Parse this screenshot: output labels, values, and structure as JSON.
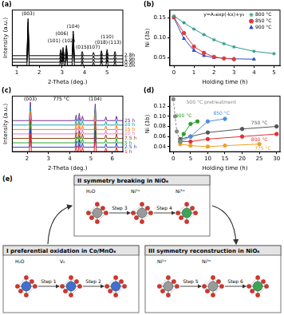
{
  "chart_data": [
    {
      "title": "(a)",
      "type": "line",
      "xlabel": "2-Theta (deg.)",
      "ylabel": "Intensity (a.u.)",
      "x": [
        0.8,
        1.45,
        1.5,
        1.55,
        2.9,
        2.95,
        3.0,
        3.05,
        3.1,
        3.15,
        3.2,
        3.25,
        3.45,
        3.5,
        3.55,
        3.85,
        3.9,
        3.95,
        4.35,
        4.4,
        4.45,
        4.7,
        4.75,
        4.8,
        4.95,
        5.0,
        5.05,
        5.3,
        5.35,
        5.4,
        5.7
      ],
      "series": [
        {
          "name": "0.0h",
          "color": "#000000",
          "values": [
            0,
            0,
            0.9,
            0,
            0,
            0.15,
            0,
            0.2,
            0,
            0,
            0.25,
            0,
            0,
            0.6,
            0,
            0,
            0.1,
            0,
            0,
            0.08,
            0,
            0,
            0.12,
            0,
            0,
            0.15,
            0,
            0,
            0.1,
            0,
            0
          ]
        },
        {
          "name": "0.9h",
          "color": "#000000",
          "values": [
            0.08,
            0.08,
            0.98,
            0.08,
            0.08,
            0.23,
            0.08,
            0.28,
            0.08,
            0.08,
            0.33,
            0.08,
            0.08,
            0.68,
            0.08,
            0.08,
            0.18,
            0.08,
            0.08,
            0.16,
            0.08,
            0.08,
            0.2,
            0.08,
            0.08,
            0.23,
            0.08,
            0.08,
            0.18,
            0.08,
            0.08
          ]
        },
        {
          "name": "1.9h",
          "color": "#000000",
          "values": [
            0.16,
            0.16,
            1.06,
            0.16,
            0.16,
            0.31,
            0.16,
            0.36,
            0.16,
            0.16,
            0.41,
            0.16,
            0.16,
            0.76,
            0.16,
            0.16,
            0.26,
            0.16,
            0.16,
            0.24,
            0.16,
            0.16,
            0.28,
            0.16,
            0.16,
            0.31,
            0.16,
            0.16,
            0.26,
            0.16,
            0.16
          ]
        },
        {
          "name": "2.8h",
          "color": "#000000",
          "values": [
            0.24,
            0.24,
            1.14,
            0.24,
            0.24,
            0.39,
            0.24,
            0.44,
            0.24,
            0.24,
            0.49,
            0.24,
            0.24,
            0.84,
            0.24,
            0.24,
            0.34,
            0.24,
            0.24,
            0.32,
            0.24,
            0.24,
            0.36,
            0.24,
            0.24,
            0.39,
            0.24,
            0.24,
            0.34,
            0.24,
            0.24
          ]
        }
      ],
      "xlim": [
        0.8,
        5.7
      ],
      "xticks": [
        1,
        2,
        3,
        4,
        5
      ],
      "ylim": [
        0,
        1.35
      ],
      "tick_labels": "x",
      "annotations": [
        {
          "text": "(003)",
          "x": 1.5,
          "y": 1.25
        },
        {
          "text": "(101)",
          "x": 2.65,
          "y": 0.6
        },
        {
          "text": "(006)",
          "x": 3.0,
          "y": 0.78
        },
        {
          "text": "(102)",
          "x": 3.3,
          "y": 0.6
        },
        {
          "text": "(104)",
          "x": 3.5,
          "y": 0.95
        },
        {
          "text": "(015)",
          "x": 3.9,
          "y": 0.45
        },
        {
          "text": "(107)",
          "x": 4.4,
          "y": 0.45
        },
        {
          "text": "(018)",
          "x": 4.75,
          "y": 0.56
        },
        {
          "text": "(110)",
          "x": 5.0,
          "y": 0.69
        },
        {
          "text": "(113)",
          "x": 5.35,
          "y": 0.56
        }
      ]
    },
    {
      "title": "(b)",
      "type": "scatter",
      "xlabel": "Holding time (h)",
      "ylabel": "Ni (3b)",
      "series": [
        {
          "name": "800 °C",
          "color": "#2f9a8a",
          "marker": "star",
          "line_style": "solid",
          "x": [
            0,
            0.5,
            1,
            1.5,
            2,
            2.5,
            3,
            4,
            5
          ],
          "values": [
            0.155,
            0.138,
            0.122,
            0.108,
            0.095,
            0.085,
            0.077,
            0.066,
            0.06
          ]
        },
        {
          "name": "850 °C",
          "color": "#e23b3b",
          "marker": "circle",
          "line_style": "solid",
          "x": [
            0,
            0.5,
            1,
            1.5,
            2,
            2.5,
            3
          ],
          "values": [
            0.152,
            0.112,
            0.078,
            0.062,
            0.052,
            0.048,
            0.046
          ]
        },
        {
          "name": "900 °C",
          "color": "#2d4fbf",
          "marker": "triangle",
          "line_style": "solid",
          "x": [
            0,
            0.5,
            1,
            1.5,
            2,
            3,
            4
          ],
          "values": [
            0.15,
            0.098,
            0.068,
            0.055,
            0.05,
            0.047,
            0.046
          ]
        }
      ],
      "xlim": [
        -0.2,
        5.3
      ],
      "xticks": [
        0,
        1,
        2,
        3,
        4,
        5
      ],
      "ylim": [
        0.03,
        0.17
      ],
      "yticks": [
        0.05,
        {
          "value": 0.1,
          "label": "0.10"
        },
        0.15
      ],
      "legend": "upper right",
      "annotations": [
        {
          "text": "y=A₁exp(-kx)+y₀",
          "x": 2.5,
          "y": 0.158
        }
      ]
    },
    {
      "title": "(c)",
      "type": "line",
      "xlabel": "2-Theta (deg.)",
      "ylabel": "Intensity (a.u.)",
      "x": [
        1.3,
        2.1,
        2.15,
        2.2,
        4.25,
        4.3,
        4.35,
        4.4,
        4.45,
        4.5,
        4.55,
        4.6,
        4.65,
        5.15,
        5.2,
        5.25,
        5.65,
        5.7,
        5.75,
        6.15,
        6.2,
        6.25,
        6.5
      ],
      "series": [
        {
          "name": "1 h",
          "color": "#e8202a",
          "values": [
            0,
            0,
            0.5,
            0,
            0,
            0.15,
            0,
            0,
            0.2,
            0,
            0,
            0.12,
            0,
            0,
            0.45,
            0,
            0,
            0.1,
            0,
            0,
            0.12,
            0,
            0
          ]
        },
        {
          "name": "2.5 h",
          "color": "#1f3fbf",
          "values": [
            0.12,
            0.12,
            0.62,
            0.12,
            0.12,
            0.27,
            0.12,
            0.12,
            0.32,
            0.12,
            0.12,
            0.24,
            0.12,
            0.12,
            0.57,
            0.12,
            0.12,
            0.22,
            0.12,
            0.12,
            0.24,
            0.12,
            0.12
          ]
        },
        {
          "name": "5 h",
          "color": "#2ca02c",
          "values": [
            0.24,
            0.24,
            0.74,
            0.24,
            0.24,
            0.39,
            0.24,
            0.24,
            0.44,
            0.24,
            0.24,
            0.36,
            0.24,
            0.24,
            0.69,
            0.24,
            0.24,
            0.34,
            0.24,
            0.24,
            0.36,
            0.24,
            0.24
          ]
        },
        {
          "name": "7.5 h",
          "color": "#8b4513",
          "values": [
            0.36,
            0.36,
            0.86,
            0.36,
            0.36,
            0.51,
            0.36,
            0.36,
            0.56,
            0.36,
            0.36,
            0.48,
            0.36,
            0.36,
            0.81,
            0.36,
            0.36,
            0.46,
            0.36,
            0.36,
            0.48,
            0.36,
            0.36
          ]
        },
        {
          "name": "10 h",
          "color": "#e377c2",
          "values": [
            0.48,
            0.48,
            0.98,
            0.48,
            0.48,
            0.63,
            0.48,
            0.48,
            0.68,
            0.48,
            0.48,
            0.6,
            0.48,
            0.48,
            0.93,
            0.48,
            0.48,
            0.58,
            0.48,
            0.48,
            0.6,
            0.48,
            0.48
          ]
        },
        {
          "name": "15 h",
          "color": "#ff7f0e",
          "values": [
            0.6,
            0.6,
            1.1,
            0.6,
            0.6,
            0.75,
            0.6,
            0.6,
            0.8,
            0.6,
            0.6,
            0.72,
            0.6,
            0.6,
            1.05,
            0.6,
            0.6,
            0.7,
            0.6,
            0.6,
            0.72,
            0.6,
            0.6
          ]
        },
        {
          "name": "20 h",
          "color": "#17a2b8",
          "values": [
            0.72,
            0.72,
            1.22,
            0.72,
            0.72,
            0.87,
            0.72,
            0.72,
            0.92,
            0.72,
            0.72,
            0.84,
            0.72,
            0.72,
            1.17,
            0.72,
            0.72,
            0.82,
            0.72,
            0.72,
            0.84,
            0.72,
            0.72
          ]
        },
        {
          "name": "25 h",
          "color": "#7b2d8e",
          "values": [
            0.84,
            0.84,
            1.34,
            0.84,
            0.84,
            0.99,
            0.84,
            0.84,
            1.04,
            0.84,
            0.84,
            0.96,
            0.84,
            0.84,
            1.29,
            0.84,
            0.84,
            0.94,
            0.84,
            0.84,
            0.96,
            0.84,
            0.84
          ]
        }
      ],
      "xlim": [
        1.3,
        6.5
      ],
      "xticks": [
        2,
        3,
        4,
        5,
        6
      ],
      "ylim": [
        0,
        1.5
      ],
      "tick_labels": "x",
      "annotations": [
        {
          "text": "(003)",
          "x": 2.15,
          "y": 1.42
        },
        {
          "text": "775 °C",
          "x": 3.6,
          "y": 1.42
        },
        {
          "text": "(104)",
          "x": 5.2,
          "y": 1.42
        }
      ]
    },
    {
      "title": "(d)",
      "type": "line",
      "xlabel": "Holding time (h)",
      "ylabel": "Ni (3b)",
      "series": [
        {
          "name": "500 °C pretreatment",
          "color": "#888888",
          "marker": "circle",
          "line_style": "dashed",
          "x": [
            0,
            0.5,
            1,
            2
          ],
          "values": [
            0.134,
            0.1,
            0.07,
            0.05
          ]
        },
        {
          "name": "900 °C",
          "color": "#2ca02c",
          "marker": "circle",
          "line_style": "solid",
          "x": [
            2,
            3,
            5,
            7
          ],
          "values": [
            0.05,
            0.065,
            0.085,
            0.09
          ]
        },
        {
          "name": "850 °C",
          "color": "#4a90d9",
          "marker": "circle",
          "line_style": "solid",
          "x": [
            2,
            5,
            10,
            15
          ],
          "values": [
            0.05,
            0.06,
            0.09,
            0.095
          ]
        },
        {
          "name": "800 °C",
          "color": "#e03030",
          "marker": "circle",
          "line_style": "solid",
          "x": [
            2,
            5,
            10,
            20,
            30
          ],
          "values": [
            0.05,
            0.05,
            0.055,
            0.06,
            0.065
          ]
        },
        {
          "name": "775 °C",
          "color": "#f0a020",
          "marker": "circle",
          "line_style": "solid",
          "x": [
            2,
            5,
            10,
            15,
            25
          ],
          "values": [
            0.045,
            0.042,
            0.04,
            0.042,
            0.045
          ]
        },
        {
          "name": "750 °C",
          "color": "#555555",
          "marker": "circle",
          "line_style": "solid",
          "x": [
            2,
            5,
            10,
            20,
            30
          ],
          "values": [
            0.055,
            0.06,
            0.068,
            0.075,
            0.08
          ]
        }
      ],
      "xlim": [
        -1,
        31
      ],
      "xticks": [
        0,
        5,
        10,
        15,
        20,
        25,
        30
      ],
      "ylim": [
        0.03,
        0.14
      ],
      "yticks": [
        0.04,
        0.06,
        0.08,
        {
          "value": 0.1,
          "label": "0.10"
        },
        0.12
      ],
      "annotations": [
        {
          "text": "500 °C pretreatment",
          "x": 11,
          "y": 0.128
        },
        {
          "text": "900 °C",
          "x": 3,
          "y": 0.1
        },
        {
          "text": "850 °C",
          "x": 14,
          "y": 0.106
        },
        {
          "text": "750 °C",
          "x": 25,
          "y": 0.087
        },
        {
          "text": "800 °C",
          "x": 25,
          "y": 0.054
        },
        {
          "text": "775 °C",
          "x": 26,
          "y": 0.036
        }
      ]
    }
  ],
  "diagram": {
    "title": "(e)",
    "boxes": [
      {
        "numeral": "I",
        "title": "preferential oxidation in Co/MnO₆",
        "steps": [
          "Step 1",
          "Step 2"
        ],
        "labels": [
          "H₂O",
          "V₀"
        ]
      },
      {
        "numeral": "II",
        "title": "symmetry breaking in NiO₆",
        "steps": [
          "Step 3",
          "Step 4"
        ],
        "labels": [
          "H₂O",
          "Ni²⁺",
          "Ni³⁺"
        ]
      },
      {
        "numeral": "III",
        "title": "symmetry reconstruction in NiO₆",
        "steps": [
          "Step 5",
          "Step 6"
        ],
        "labels": [
          "Ni²⁺",
          "Ni³⁺"
        ]
      }
    ]
  }
}
